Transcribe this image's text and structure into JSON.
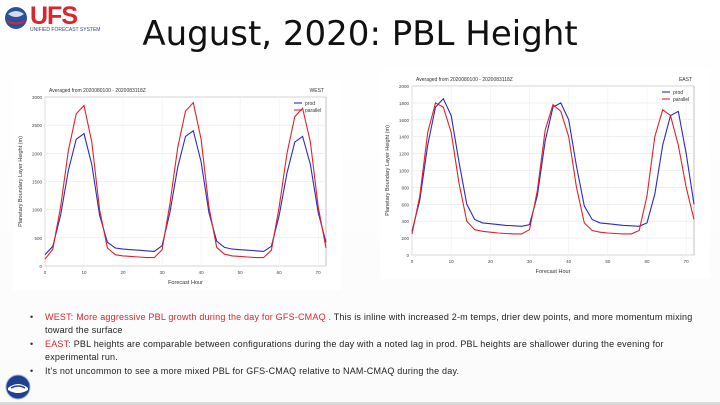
{
  "slide": {
    "title": "August, 2020:  PBL Height",
    "logo_text": "UFS",
    "logo_sub": "UNIFIED FORECAST SYSTEM"
  },
  "chart_data": [
    {
      "type": "line",
      "title": "Averaged from 2020080100 - 2020083118Z",
      "region_label": "WEST",
      "xlabel": "Forecast Hour",
      "ylabel": "Planetary Boundary Layer Height (m)",
      "xlim": [
        0,
        72
      ],
      "ylim": [
        0,
        3000
      ],
      "xticks": [
        0,
        10,
        20,
        30,
        40,
        50,
        60,
        70
      ],
      "yticks": [
        0,
        500,
        1000,
        1500,
        2000,
        2500,
        3000
      ],
      "grid": true,
      "legend_position": "top-right",
      "colors": {
        "prod": "#2b2bbf",
        "parallel": "#e0222a"
      },
      "series": [
        {
          "name": "prod",
          "x": [
            0,
            2,
            4,
            6,
            8,
            10,
            12,
            14,
            16,
            18,
            20,
            22,
            24,
            26,
            28,
            30,
            32,
            34,
            36,
            38,
            40,
            42,
            44,
            46,
            48,
            50,
            52,
            54,
            56,
            58,
            60,
            62,
            64,
            66,
            68,
            70,
            72
          ],
          "values": [
            200,
            350,
            900,
            1700,
            2250,
            2350,
            1800,
            900,
            420,
            320,
            300,
            290,
            280,
            270,
            260,
            360,
            950,
            1750,
            2300,
            2400,
            1850,
            950,
            440,
            330,
            300,
            290,
            280,
            270,
            260,
            350,
            900,
            1650,
            2200,
            2300,
            1800,
            950,
            420
          ]
        },
        {
          "name": "parallel",
          "x": [
            0,
            2,
            4,
            6,
            8,
            10,
            12,
            14,
            16,
            18,
            20,
            22,
            24,
            26,
            28,
            30,
            32,
            34,
            36,
            38,
            40,
            42,
            44,
            46,
            48,
            50,
            52,
            54,
            56,
            58,
            60,
            62,
            64,
            66,
            68,
            70,
            72
          ],
          "values": [
            120,
            300,
            1050,
            2050,
            2700,
            2850,
            2200,
            1000,
            320,
            200,
            180,
            170,
            160,
            150,
            150,
            290,
            1100,
            2100,
            2750,
            2900,
            2250,
            1050,
            330,
            210,
            180,
            170,
            160,
            150,
            150,
            280,
            1050,
            2000,
            2650,
            2800,
            2200,
            1050,
            320
          ]
        }
      ]
    },
    {
      "type": "line",
      "title": "Averaged from 2020080100 - 2020083118Z",
      "region_label": "EAST",
      "xlabel": "Forecast Hour",
      "ylabel": "Planetary Boundary Layer Height (m)",
      "xlim": [
        0,
        72
      ],
      "ylim": [
        0,
        2000
      ],
      "xticks": [
        0,
        10,
        20,
        30,
        40,
        50,
        60,
        70
      ],
      "yticks": [
        0,
        200,
        400,
        600,
        800,
        1000,
        1200,
        1400,
        1600,
        1800,
        2000
      ],
      "grid": true,
      "legend_position": "top-right",
      "colors": {
        "prod": "#2b2bbf",
        "parallel": "#e0222a"
      },
      "series": [
        {
          "name": "prod",
          "x": [
            0,
            2,
            4,
            6,
            8,
            10,
            12,
            14,
            16,
            18,
            20,
            22,
            24,
            26,
            28,
            30,
            32,
            34,
            36,
            38,
            40,
            42,
            44,
            46,
            48,
            50,
            52,
            54,
            56,
            58,
            60,
            62,
            64,
            66,
            68,
            70,
            72
          ],
          "values": [
            280,
            650,
            1300,
            1750,
            1850,
            1650,
            1100,
            600,
            420,
            380,
            370,
            360,
            350,
            345,
            340,
            360,
            700,
            1350,
            1750,
            1800,
            1600,
            1050,
            580,
            420,
            380,
            370,
            360,
            350,
            345,
            340,
            380,
            720,
            1300,
            1650,
            1700,
            1200,
            600
          ]
        },
        {
          "name": "parallel",
          "x": [
            0,
            2,
            4,
            6,
            8,
            10,
            12,
            14,
            16,
            18,
            20,
            22,
            24,
            26,
            28,
            30,
            32,
            34,
            36,
            38,
            40,
            42,
            44,
            46,
            48,
            50,
            52,
            54,
            56,
            58,
            60,
            62,
            64,
            66,
            68,
            70,
            72
          ],
          "values": [
            250,
            700,
            1450,
            1800,
            1750,
            1450,
            850,
            400,
            300,
            280,
            270,
            260,
            255,
            250,
            250,
            300,
            760,
            1480,
            1780,
            1700,
            1400,
            800,
            380,
            290,
            270,
            260,
            255,
            250,
            250,
            290,
            700,
            1400,
            1720,
            1650,
            1300,
            800,
            420
          ]
        }
      ]
    }
  ],
  "legend": {
    "prod": "prod",
    "parallel": "parallel"
  },
  "bullets": [
    {
      "highlight": "WEST:  More aggressive PBL growth during the day for GFS-CMAQ .",
      "text": "  This is inline with increased 2-m temps, drier dew points, and more momentum mixing toward the surface"
    },
    {
      "highlight": "EAST:",
      "text": "  PBL heights are comparable between configurations during the day with a noted lag in prod.  PBL heights are shallower during the evening for experimental run."
    },
    {
      "highlight": "",
      "text": "It’s not uncommon to see a more mixed PBL for  GFS-CMAQ relative to NAM-CMAQ during the day."
    }
  ]
}
